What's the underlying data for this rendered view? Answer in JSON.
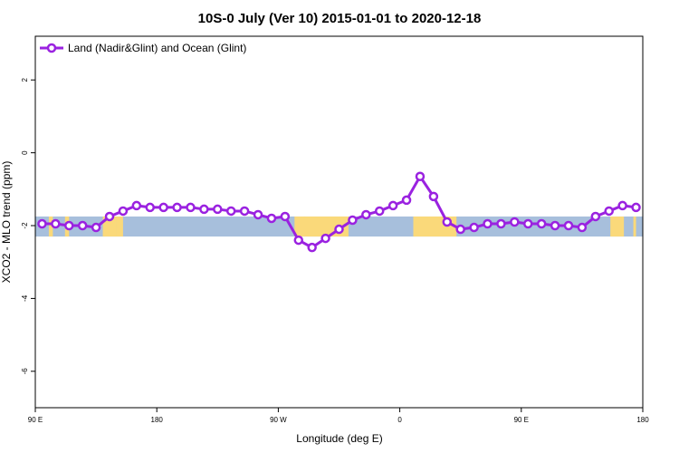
{
  "chart_data": {
    "type": "line",
    "title": "10S-0 July (Ver 10)   2015-01-01 to 2020-12-18",
    "xlabel": "Longitude (deg E)",
    "ylabel": "XCO2 - MLO trend (ppm)",
    "xlim": [
      90,
      540
    ],
    "ylim": [
      -7.0,
      3.2
    ],
    "x_ticks": [
      {
        "value": 90,
        "label": "90 E"
      },
      {
        "value": 180,
        "label": "180"
      },
      {
        "value": 270,
        "label": "90 W"
      },
      {
        "value": 360,
        "label": "0"
      },
      {
        "value": 450,
        "label": "90 E"
      },
      {
        "value": 540,
        "label": "180"
      }
    ],
    "y_ticks": [
      {
        "value": 2,
        "label": "2"
      },
      {
        "value": 0,
        "label": "0"
      },
      {
        "value": -2,
        "label": "-2"
      },
      {
        "value": -4,
        "label": "-4"
      },
      {
        "value": -6,
        "label": "-6"
      }
    ],
    "legend_position": "top-left",
    "background_band": {
      "y_range": [
        -2.3,
        -1.75
      ],
      "ocean_color": "#a7bfdc",
      "land_color": "#fad97a",
      "land_segments": [
        [
          100,
          103
        ],
        [
          112,
          115
        ],
        [
          140,
          150
        ],
        [
          150,
          155
        ],
        [
          282,
          290
        ],
        [
          289,
          322
        ],
        [
          370,
          402
        ],
        [
          516,
          526
        ],
        [
          533,
          535
        ]
      ]
    },
    "series": [
      {
        "name": "Land (Nadir&Glint) and Ocean (Glint)",
        "color": "#9a22e0",
        "x": [
          95,
          105,
          115,
          125,
          135,
          145,
          155,
          165,
          175,
          185,
          195,
          205,
          215,
          225,
          235,
          245,
          255,
          265,
          275,
          285,
          295,
          305,
          315,
          325,
          335,
          345,
          355,
          365,
          375,
          385,
          395,
          405,
          415,
          425,
          435,
          445,
          455,
          465,
          475,
          485,
          495,
          505,
          515,
          525,
          535
        ],
        "y": [
          -1.95,
          -1.95,
          -2.0,
          -2.0,
          -2.05,
          -1.75,
          -1.6,
          -1.45,
          -1.5,
          -1.5,
          -1.5,
          -1.5,
          -1.55,
          -1.55,
          -1.6,
          -1.6,
          -1.7,
          -1.8,
          -1.75,
          -2.4,
          -2.6,
          -2.35,
          -2.1,
          -1.85,
          -1.7,
          -1.6,
          -1.45,
          -1.3,
          -0.65,
          -1.2,
          -1.9,
          -2.1,
          -2.05,
          -1.95,
          -1.95,
          -1.9,
          -1.95,
          -1.95,
          -2.0,
          -2.0,
          -2.05,
          -1.75,
          -1.6,
          -1.45,
          -1.5
        ]
      }
    ]
  }
}
